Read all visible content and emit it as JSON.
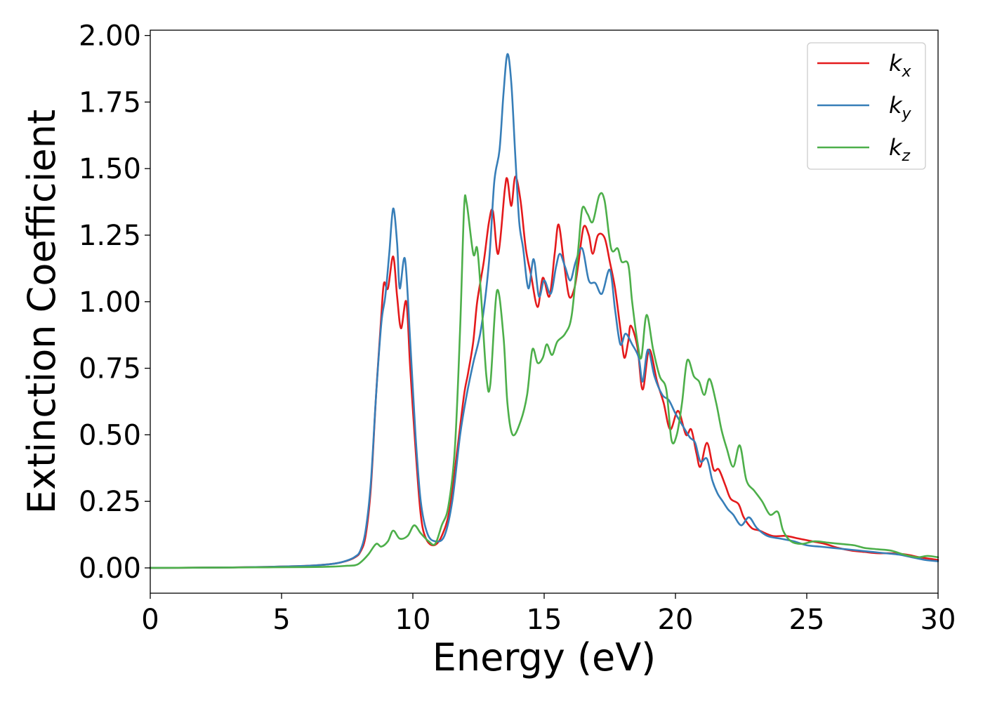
{
  "chart_data": {
    "type": "line",
    "title": "",
    "xlabel": "Energy (eV)",
    "ylabel": "Extinction Coefficient",
    "xlim": [
      0,
      30
    ],
    "ylim": [
      -0.095,
      2.02
    ],
    "xticks": [
      0,
      5,
      10,
      15,
      20,
      25,
      30
    ],
    "xtick_labels": [
      "0",
      "5",
      "10",
      "15",
      "20",
      "25",
      "30"
    ],
    "yticks": [
      0.0,
      0.25,
      0.5,
      0.75,
      1.0,
      1.25,
      1.5,
      1.75,
      2.0
    ],
    "ytick_labels": [
      "0.00",
      "0.25",
      "0.50",
      "0.75",
      "1.00",
      "1.25",
      "1.50",
      "1.75",
      "2.00"
    ],
    "grid": false,
    "legend_position": "top-right",
    "series": [
      {
        "name": "k_x",
        "legend_base": "k",
        "legend_sub": "x",
        "color": "#e41a1c",
        "points": [
          [
            0,
            0
          ],
          [
            2,
            0.001
          ],
          [
            4,
            0.003
          ],
          [
            6,
            0.008
          ],
          [
            7,
            0.016
          ],
          [
            7.5,
            0.027
          ],
          [
            7.8,
            0.04
          ],
          [
            8.0,
            0.06
          ],
          [
            8.2,
            0.12
          ],
          [
            8.4,
            0.3
          ],
          [
            8.6,
            0.65
          ],
          [
            8.8,
            0.95
          ],
          [
            8.9,
            1.07
          ],
          [
            9.05,
            1.05
          ],
          [
            9.25,
            1.17
          ],
          [
            9.4,
            1.02
          ],
          [
            9.55,
            0.9
          ],
          [
            9.75,
            1.0
          ],
          [
            9.9,
            0.75
          ],
          [
            10.1,
            0.45
          ],
          [
            10.3,
            0.2
          ],
          [
            10.5,
            0.11
          ],
          [
            10.8,
            0.085
          ],
          [
            11.1,
            0.12
          ],
          [
            11.4,
            0.22
          ],
          [
            11.7,
            0.45
          ],
          [
            11.95,
            0.65
          ],
          [
            12.1,
            0.73
          ],
          [
            12.3,
            0.85
          ],
          [
            12.45,
            1.0
          ],
          [
            12.7,
            1.15
          ],
          [
            12.9,
            1.3
          ],
          [
            13.05,
            1.34
          ],
          [
            13.25,
            1.18
          ],
          [
            13.5,
            1.42
          ],
          [
            13.6,
            1.46
          ],
          [
            13.75,
            1.36
          ],
          [
            13.9,
            1.47
          ],
          [
            14.1,
            1.38
          ],
          [
            14.3,
            1.2
          ],
          [
            14.5,
            1.1
          ],
          [
            14.75,
            0.98
          ],
          [
            14.95,
            1.09
          ],
          [
            15.2,
            1.02
          ],
          [
            15.4,
            1.18
          ],
          [
            15.55,
            1.29
          ],
          [
            15.75,
            1.15
          ],
          [
            15.95,
            1.02
          ],
          [
            16.15,
            1.05
          ],
          [
            16.3,
            1.14
          ],
          [
            16.5,
            1.28
          ],
          [
            16.7,
            1.25
          ],
          [
            16.85,
            1.18
          ],
          [
            17.05,
            1.25
          ],
          [
            17.3,
            1.24
          ],
          [
            17.5,
            1.15
          ],
          [
            17.7,
            1.05
          ],
          [
            17.9,
            0.9
          ],
          [
            18.05,
            0.79
          ],
          [
            18.2,
            0.85
          ],
          [
            18.3,
            0.91
          ],
          [
            18.55,
            0.83
          ],
          [
            18.75,
            0.67
          ],
          [
            19.0,
            0.82
          ],
          [
            19.3,
            0.7
          ],
          [
            19.55,
            0.62
          ],
          [
            19.8,
            0.52
          ],
          [
            20.1,
            0.59
          ],
          [
            20.4,
            0.5
          ],
          [
            20.6,
            0.52
          ],
          [
            20.8,
            0.43
          ],
          [
            20.95,
            0.38
          ],
          [
            21.2,
            0.47
          ],
          [
            21.45,
            0.37
          ],
          [
            21.65,
            0.37
          ],
          [
            21.9,
            0.31
          ],
          [
            22.1,
            0.26
          ],
          [
            22.4,
            0.24
          ],
          [
            22.6,
            0.19
          ],
          [
            22.9,
            0.15
          ],
          [
            23.2,
            0.14
          ],
          [
            23.7,
            0.12
          ],
          [
            24.2,
            0.12
          ],
          [
            24.7,
            0.11
          ],
          [
            25.2,
            0.1
          ],
          [
            25.7,
            0.09
          ],
          [
            26.2,
            0.075
          ],
          [
            26.7,
            0.065
          ],
          [
            27.2,
            0.06
          ],
          [
            27.7,
            0.055
          ],
          [
            28.2,
            0.055
          ],
          [
            28.8,
            0.05
          ],
          [
            29.3,
            0.04
          ],
          [
            30,
            0.03
          ]
        ]
      },
      {
        "name": "k_y",
        "legend_base": "k",
        "legend_sub": "y",
        "color": "#377eb8",
        "points": [
          [
            0,
            0
          ],
          [
            2,
            0.001
          ],
          [
            4,
            0.003
          ],
          [
            6,
            0.008
          ],
          [
            7,
            0.016
          ],
          [
            7.5,
            0.028
          ],
          [
            7.8,
            0.042
          ],
          [
            8.0,
            0.065
          ],
          [
            8.2,
            0.14
          ],
          [
            8.4,
            0.32
          ],
          [
            8.6,
            0.65
          ],
          [
            8.8,
            0.92
          ],
          [
            8.95,
            1.02
          ],
          [
            9.1,
            1.18
          ],
          [
            9.25,
            1.35
          ],
          [
            9.4,
            1.22
          ],
          [
            9.5,
            1.05
          ],
          [
            9.7,
            1.16
          ],
          [
            9.9,
            0.85
          ],
          [
            10.1,
            0.5
          ],
          [
            10.3,
            0.25
          ],
          [
            10.55,
            0.13
          ],
          [
            10.85,
            0.1
          ],
          [
            11.2,
            0.12
          ],
          [
            11.5,
            0.25
          ],
          [
            11.8,
            0.5
          ],
          [
            12.05,
            0.65
          ],
          [
            12.3,
            0.77
          ],
          [
            12.6,
            0.9
          ],
          [
            12.9,
            1.15
          ],
          [
            13.1,
            1.45
          ],
          [
            13.3,
            1.57
          ],
          [
            13.45,
            1.78
          ],
          [
            13.6,
            1.93
          ],
          [
            13.75,
            1.82
          ],
          [
            13.9,
            1.55
          ],
          [
            14.05,
            1.3
          ],
          [
            14.2,
            1.2
          ],
          [
            14.4,
            1.05
          ],
          [
            14.6,
            1.16
          ],
          [
            14.8,
            1.02
          ],
          [
            15.0,
            1.08
          ],
          [
            15.25,
            1.03
          ],
          [
            15.45,
            1.13
          ],
          [
            15.6,
            1.18
          ],
          [
            15.8,
            1.13
          ],
          [
            16.0,
            1.08
          ],
          [
            16.2,
            1.15
          ],
          [
            16.45,
            1.2
          ],
          [
            16.7,
            1.08
          ],
          [
            16.95,
            1.07
          ],
          [
            17.2,
            1.03
          ],
          [
            17.5,
            1.12
          ],
          [
            17.7,
            0.97
          ],
          [
            17.9,
            0.84
          ],
          [
            18.1,
            0.88
          ],
          [
            18.35,
            0.84
          ],
          [
            18.6,
            0.79
          ],
          [
            18.75,
            0.7
          ],
          [
            18.95,
            0.82
          ],
          [
            19.2,
            0.72
          ],
          [
            19.5,
            0.65
          ],
          [
            19.75,
            0.63
          ],
          [
            20.0,
            0.58
          ],
          [
            20.3,
            0.53
          ],
          [
            20.55,
            0.49
          ],
          [
            20.75,
            0.47
          ],
          [
            20.95,
            0.4
          ],
          [
            21.2,
            0.41
          ],
          [
            21.4,
            0.33
          ],
          [
            21.6,
            0.28
          ],
          [
            21.8,
            0.25
          ],
          [
            22.0,
            0.22
          ],
          [
            22.2,
            0.2
          ],
          [
            22.5,
            0.16
          ],
          [
            22.8,
            0.19
          ],
          [
            23.1,
            0.15
          ],
          [
            23.5,
            0.12
          ],
          [
            24.0,
            0.11
          ],
          [
            24.5,
            0.1
          ],
          [
            25.0,
            0.085
          ],
          [
            25.5,
            0.08
          ],
          [
            26.0,
            0.075
          ],
          [
            26.5,
            0.07
          ],
          [
            27.0,
            0.065
          ],
          [
            27.5,
            0.06
          ],
          [
            28.0,
            0.055
          ],
          [
            28.5,
            0.05
          ],
          [
            29.0,
            0.04
          ],
          [
            29.5,
            0.03
          ],
          [
            30,
            0.025
          ]
        ]
      },
      {
        "name": "k_z",
        "legend_base": "k",
        "legend_sub": "z",
        "color": "#4daf4a",
        "points": [
          [
            0,
            0
          ],
          [
            2,
            0.001
          ],
          [
            4,
            0.002
          ],
          [
            6,
            0.003
          ],
          [
            7,
            0.005
          ],
          [
            7.5,
            0.008
          ],
          [
            7.8,
            0.01
          ],
          [
            8.0,
            0.02
          ],
          [
            8.3,
            0.05
          ],
          [
            8.6,
            0.09
          ],
          [
            8.8,
            0.08
          ],
          [
            9.05,
            0.1
          ],
          [
            9.25,
            0.14
          ],
          [
            9.5,
            0.11
          ],
          [
            9.8,
            0.12
          ],
          [
            10.05,
            0.16
          ],
          [
            10.3,
            0.13
          ],
          [
            10.6,
            0.1
          ],
          [
            10.85,
            0.09
          ],
          [
            11.1,
            0.16
          ],
          [
            11.35,
            0.23
          ],
          [
            11.6,
            0.45
          ],
          [
            11.8,
            0.9
          ],
          [
            11.95,
            1.35
          ],
          [
            12.05,
            1.37
          ],
          [
            12.3,
            1.18
          ],
          [
            12.45,
            1.2
          ],
          [
            12.6,
            1.02
          ],
          [
            12.8,
            0.72
          ],
          [
            12.95,
            0.69
          ],
          [
            13.2,
            1.04
          ],
          [
            13.45,
            0.87
          ],
          [
            13.6,
            0.62
          ],
          [
            13.8,
            0.5
          ],
          [
            14.1,
            0.55
          ],
          [
            14.35,
            0.65
          ],
          [
            14.55,
            0.82
          ],
          [
            14.75,
            0.77
          ],
          [
            14.95,
            0.79
          ],
          [
            15.1,
            0.84
          ],
          [
            15.3,
            0.8
          ],
          [
            15.5,
            0.85
          ],
          [
            15.8,
            0.88
          ],
          [
            16.05,
            0.95
          ],
          [
            16.3,
            1.2
          ],
          [
            16.45,
            1.35
          ],
          [
            16.65,
            1.33
          ],
          [
            16.85,
            1.3
          ],
          [
            17.1,
            1.4
          ],
          [
            17.3,
            1.38
          ],
          [
            17.55,
            1.2
          ],
          [
            17.8,
            1.2
          ],
          [
            17.95,
            1.15
          ],
          [
            18.2,
            1.14
          ],
          [
            18.35,
            1.0
          ],
          [
            18.55,
            0.85
          ],
          [
            18.7,
            0.79
          ],
          [
            18.9,
            0.95
          ],
          [
            19.15,
            0.82
          ],
          [
            19.4,
            0.72
          ],
          [
            19.65,
            0.67
          ],
          [
            19.85,
            0.48
          ],
          [
            20.05,
            0.5
          ],
          [
            20.25,
            0.62
          ],
          [
            20.45,
            0.78
          ],
          [
            20.7,
            0.72
          ],
          [
            20.9,
            0.7
          ],
          [
            21.1,
            0.65
          ],
          [
            21.3,
            0.71
          ],
          [
            21.55,
            0.62
          ],
          [
            21.75,
            0.52
          ],
          [
            21.95,
            0.45
          ],
          [
            22.2,
            0.38
          ],
          [
            22.45,
            0.46
          ],
          [
            22.7,
            0.33
          ],
          [
            23.0,
            0.29
          ],
          [
            23.3,
            0.25
          ],
          [
            23.6,
            0.2
          ],
          [
            23.9,
            0.21
          ],
          [
            24.1,
            0.14
          ],
          [
            24.4,
            0.1
          ],
          [
            24.8,
            0.09
          ],
          [
            25.3,
            0.1
          ],
          [
            25.8,
            0.095
          ],
          [
            26.3,
            0.09
          ],
          [
            26.8,
            0.085
          ],
          [
            27.2,
            0.075
          ],
          [
            27.7,
            0.07
          ],
          [
            28.2,
            0.065
          ],
          [
            28.7,
            0.05
          ],
          [
            29.2,
            0.04
          ],
          [
            29.6,
            0.045
          ],
          [
            30,
            0.04
          ]
        ]
      }
    ]
  }
}
